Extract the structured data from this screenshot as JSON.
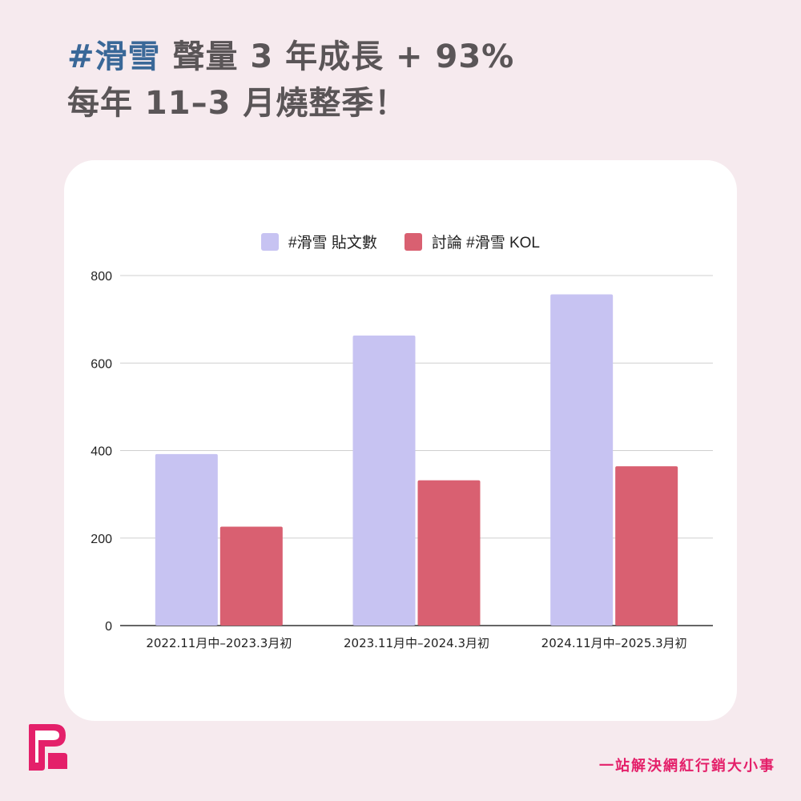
{
  "headline": {
    "tag": "#滑雪",
    "line1_rest": " 聲量 3 年成長 + 93%",
    "line2": "每年 11–3 月燒整季！"
  },
  "tagline": "一站解決網紅行銷大小事",
  "colors": {
    "series1": "#c7c3f2",
    "series2": "#d96071",
    "tag": "#3a6898",
    "brand": "#e4206a"
  },
  "chart_data": {
    "type": "bar",
    "categories": [
      "2022.11月中–2023.3月初",
      "2023.11月中–2024.3月初",
      "2024.11月中–2025.3月初"
    ],
    "series": [
      {
        "name": "#滑雪 貼文數",
        "values": [
          392,
          663,
          757
        ]
      },
      {
        "name": "討論 #滑雪 KOL",
        "values": [
          226,
          332,
          364
        ]
      }
    ],
    "ylim": [
      0,
      800
    ],
    "yticks": [
      0,
      200,
      400,
      600,
      800
    ],
    "grid": true,
    "legend": "top-center"
  }
}
